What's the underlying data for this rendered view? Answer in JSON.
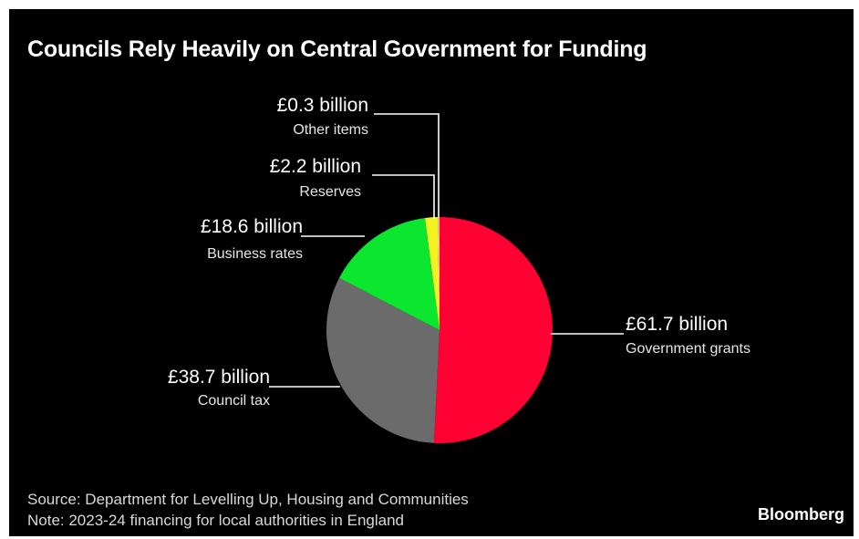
{
  "title": "Councils Rely Heavily on Central Government for Funding",
  "source": "Source: Department for Levelling Up, Housing and Communities",
  "note": "Note: 2023-24 financing for local authorities in England",
  "brand": "Bloomberg",
  "colors": {
    "background": "#000000",
    "text": "#ffffff",
    "leader": "#ffffff"
  },
  "chart_data": {
    "type": "pie",
    "unit": "£ billion",
    "slices": [
      {
        "label": "Government grants",
        "value": 61.7,
        "value_label": "£61.7 billion",
        "color": "#ff0033"
      },
      {
        "label": "Council tax",
        "value": 38.7,
        "value_label": "£38.7 billion",
        "color": "#6b6b6b"
      },
      {
        "label": "Business rates",
        "value": 18.6,
        "value_label": "£18.6 billion",
        "color": "#0be62e"
      },
      {
        "label": "Reserves",
        "value": 2.2,
        "value_label": "£2.2 billion",
        "color": "#f3f31f"
      },
      {
        "label": "Other items",
        "value": 0.3,
        "value_label": "£0.3 billion",
        "color": "#f7c9a5"
      }
    ]
  }
}
